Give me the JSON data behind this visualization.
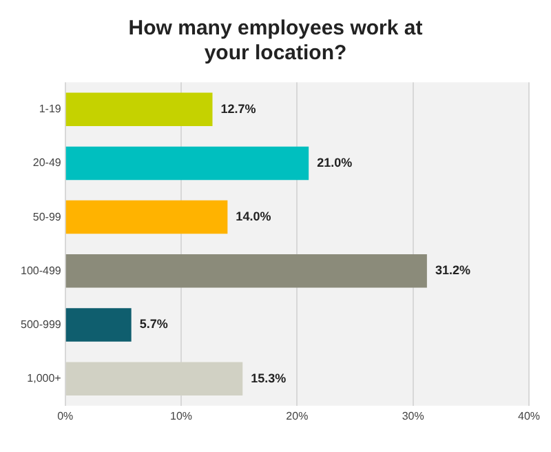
{
  "chart_data": {
    "type": "bar",
    "orientation": "horizontal",
    "title": "How many employees work at your location?",
    "categories": [
      "1-19",
      "20-49",
      "50-99",
      "100-499",
      "500-999",
      "1,000+"
    ],
    "values": [
      12.7,
      21.0,
      14.0,
      31.2,
      5.7,
      15.3
    ],
    "colors": [
      "#c5d200",
      "#00bfbf",
      "#ffb300",
      "#8b8b7a",
      "#0f5e6e",
      "#d1d1c4"
    ],
    "value_labels": [
      "12.7%",
      "21.0%",
      "14.0%",
      "31.2%",
      "5.7%",
      "15.3%"
    ],
    "xlim": [
      0,
      40
    ],
    "xticks": [
      {
        "value": 0,
        "label": "0%"
      },
      {
        "value": 10,
        "label": "10%"
      },
      {
        "value": 20,
        "label": "20%"
      },
      {
        "value": 30,
        "label": "30%"
      },
      {
        "value": 40,
        "label": "40%"
      }
    ],
    "grid": "x",
    "legend": false
  }
}
